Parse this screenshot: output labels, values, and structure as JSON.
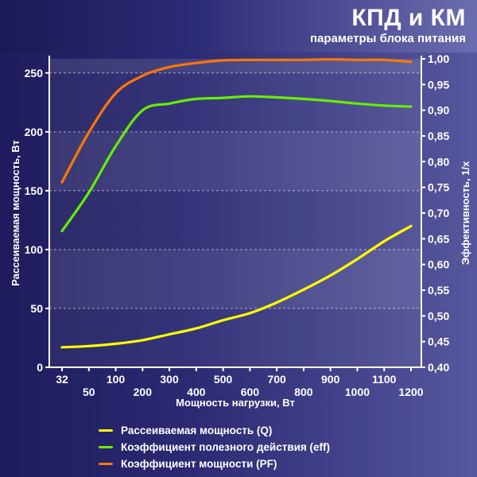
{
  "header": {
    "title": "КПД и КМ",
    "subtitle": "параметры блока питания"
  },
  "chart_data": {
    "type": "line",
    "xlabel": "Мощность нагрузки, Вт",
    "ylabel_left": "Рассеиваемая мощность, Вт",
    "ylabel_right": "Эффективность, 1/x",
    "x_ticks_top": [
      "32",
      "100",
      "300",
      "500",
      "700",
      "900",
      "1100"
    ],
    "x_ticks_bottom": [
      "50",
      "200",
      "400",
      "600",
      "800",
      "1000",
      "1200"
    ],
    "y_left_ticks": [
      "0",
      "50",
      "100",
      "150",
      "200",
      "250"
    ],
    "y_right_ticks": [
      "0,40",
      "0,45",
      "0,50",
      "0,55",
      "0,60",
      "0,65",
      "0,70",
      "0,75",
      "0,80",
      "0,85",
      "0,90",
      "0,95",
      "1,00"
    ],
    "ylim_left": [
      0,
      262
    ],
    "ylim_right": [
      0.4,
      1.0
    ],
    "grid": "horizontal dashed, alternating bands",
    "series": [
      {
        "name": "Рассеиваемая мощность (Q)",
        "axis": "left",
        "color": "#ffff00",
        "x": [
          "32",
          "50",
          "100",
          "200",
          "300",
          "400",
          "500",
          "600",
          "700",
          "800",
          "900",
          "1000",
          "1100",
          "1200"
        ],
        "values": [
          17,
          18,
          20,
          23,
          28,
          33,
          40,
          46,
          55,
          66,
          78,
          92,
          107,
          120
        ]
      },
      {
        "name": "Коэффициент полезного действия (eff)",
        "axis": "right",
        "color": "#66ee00",
        "x": [
          "32",
          "50",
          "100",
          "200",
          "300",
          "400",
          "500",
          "600",
          "700",
          "800",
          "900",
          "1000",
          "1100",
          "1200"
        ],
        "values": [
          0.665,
          0.74,
          0.83,
          0.9,
          0.913,
          0.922,
          0.924,
          0.927,
          0.925,
          0.922,
          0.918,
          0.913,
          0.909,
          0.907
        ]
      },
      {
        "name": "Коэффициент мощности (PF)",
        "axis": "right",
        "color": "#ff7700",
        "x": [
          "32",
          "50",
          "100",
          "200",
          "300",
          "400",
          "500",
          "600",
          "700",
          "800",
          "900",
          "1000",
          "1100",
          "1200"
        ],
        "values": [
          0.76,
          0.857,
          0.933,
          0.967,
          0.984,
          0.992,
          0.997,
          0.998,
          0.998,
          0.998,
          0.999,
          0.998,
          0.998,
          0.994
        ]
      }
    ]
  }
}
